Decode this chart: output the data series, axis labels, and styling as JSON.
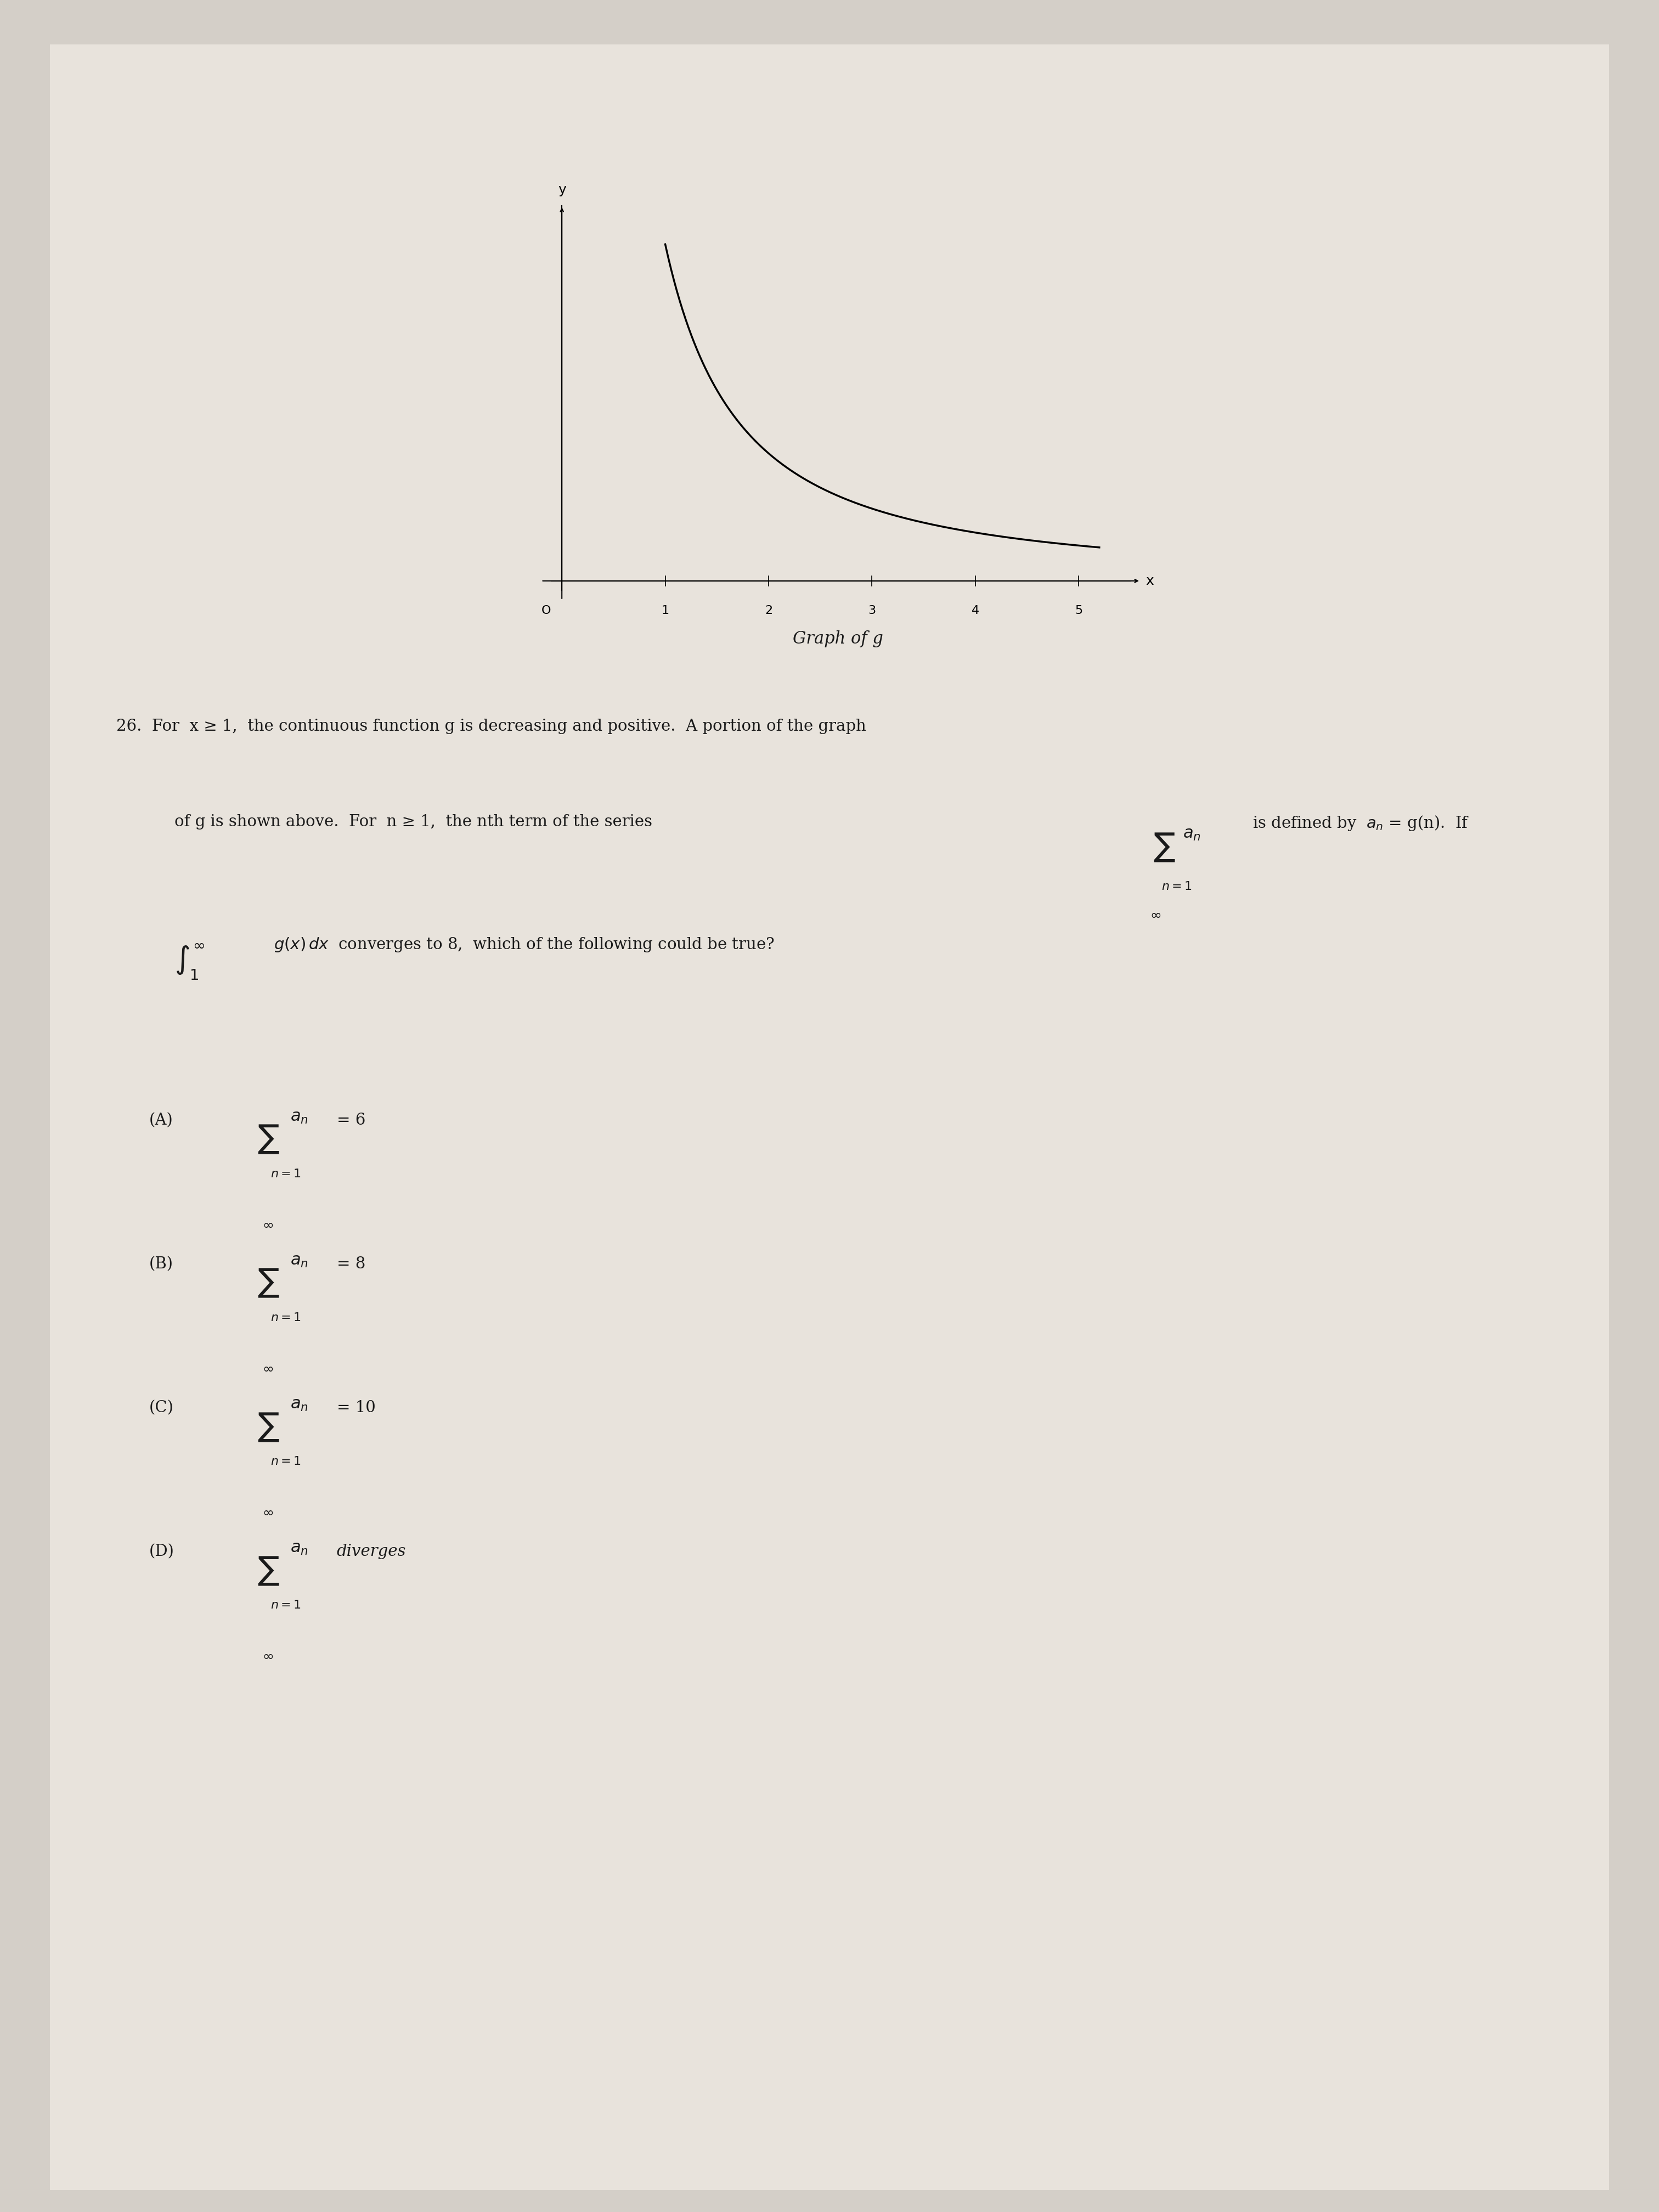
{
  "bg_color": "#d4cfc8",
  "paper_color": "#e8e3dc",
  "text_color": "#1a1a1a",
  "fig_width": 30.24,
  "fig_height": 40.32,
  "graph_caption": "Graph of g",
  "problem_number": "26.",
  "line1": "For  x ≥ 1,  the continuous function g is decreasing and positive.  A portion of the graph",
  "line2": "of g is shown above.  For  n ≥ 1,  the nth term of the series",
  "line2b": "is defined by  aₙ = g(n).  If",
  "line3": "converges to 8,  which of the following could be true?",
  "optionA": "(A)",
  "optionA_val": "= 6",
  "optionB": "(B)",
  "optionB_val": "= 8",
  "optionC": "(C)",
  "optionC_val": "= 10",
  "optionD": "(D)",
  "optionD_text": "diverges",
  "axis_labels": [
    "O",
    "1",
    "2",
    "3",
    "4",
    "5"
  ],
  "axis_x_label": "x",
  "axis_y_label": "y"
}
